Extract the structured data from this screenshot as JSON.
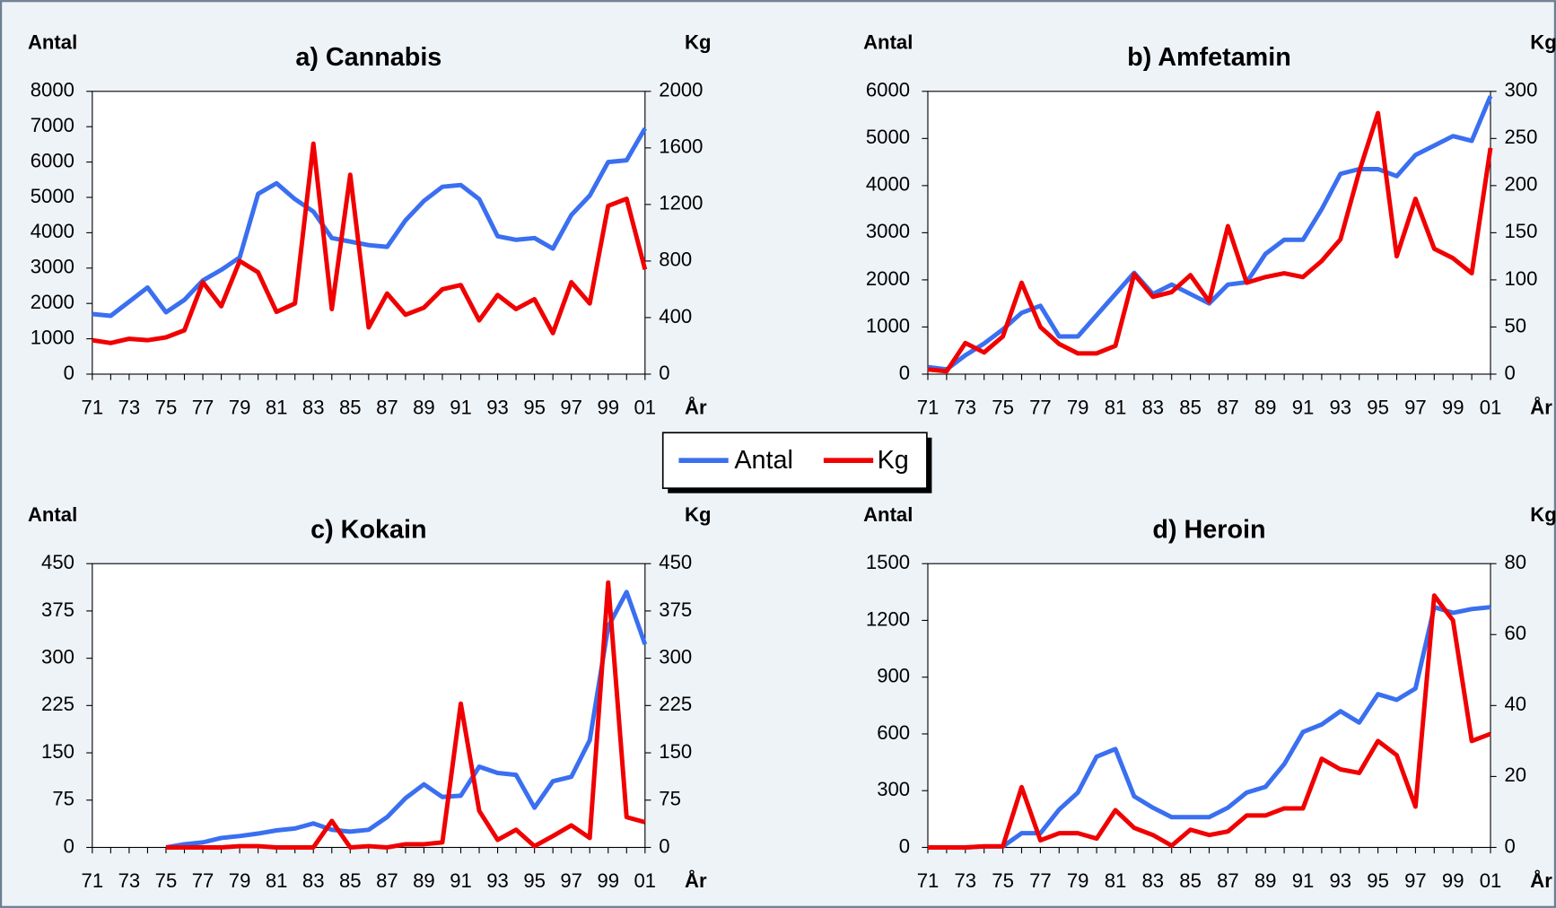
{
  "chart_data": [
    {
      "type": "line",
      "title": "a) Cannabis",
      "y_label": "Antal",
      "y2_label": "Kg",
      "x_label": "År",
      "categories": [
        "71",
        null,
        "73",
        null,
        "75",
        null,
        "77",
        null,
        "79",
        null,
        "81",
        null,
        "83",
        null,
        "85",
        null,
        "87",
        null,
        "89",
        null,
        "91",
        null,
        "93",
        null,
        "95",
        null,
        "97",
        null,
        "99",
        null,
        "01"
      ],
      "ylim": [
        0,
        8000
      ],
      "yticks": [
        0,
        1000,
        2000,
        3000,
        4000,
        5000,
        6000,
        7000,
        8000
      ],
      "y2lim": [
        0,
        2000
      ],
      "y2ticks": [
        0,
        400,
        800,
        1200,
        1600,
        2000
      ],
      "series": [
        {
          "name": "Antal",
          "color": "#3a6ff0",
          "values": [
            1700,
            1650,
            2050,
            2450,
            1750,
            2100,
            2650,
            2950,
            3300,
            5100,
            5400,
            4950,
            4600,
            3850,
            3750,
            3650,
            3600,
            4350,
            4900,
            5300,
            5350,
            4950,
            3900,
            3800,
            3850,
            3550,
            4500,
            5050,
            6000,
            6050,
            6950
          ]
        },
        {
          "name": "Kg",
          "color": "#f00000",
          "axis": "y2",
          "values": [
            240,
            220,
            250,
            240,
            260,
            310,
            650,
            480,
            800,
            720,
            440,
            500,
            1630,
            460,
            1410,
            330,
            570,
            420,
            470,
            600,
            630,
            380,
            560,
            460,
            530,
            290,
            650,
            500,
            1190,
            1240,
            740
          ]
        }
      ]
    },
    {
      "type": "line",
      "title": "b) Amfetamin",
      "y_label": "Antal",
      "y2_label": "Kg",
      "x_label": "År",
      "categories": [
        "71",
        null,
        "73",
        null,
        "75",
        null,
        "77",
        null,
        "79",
        null,
        "81",
        null,
        "83",
        null,
        "85",
        null,
        "87",
        null,
        "89",
        null,
        "91",
        null,
        "93",
        null,
        "95",
        null,
        "97",
        null,
        "99",
        null,
        "01"
      ],
      "ylim": [
        0,
        6000
      ],
      "yticks": [
        0,
        1000,
        2000,
        3000,
        4000,
        5000,
        6000
      ],
      "y2lim": [
        0,
        300
      ],
      "y2ticks": [
        0,
        50,
        100,
        150,
        200,
        250,
        300
      ],
      "series": [
        {
          "name": "Antal",
          "color": "#3a6ff0",
          "values": [
            150,
            100,
            400,
            650,
            950,
            1300,
            1450,
            800,
            800,
            1250,
            1700,
            2150,
            1700,
            1900,
            1700,
            1500,
            1900,
            1950,
            2550,
            2850,
            2850,
            3500,
            4250,
            4350,
            4350,
            4200,
            4650,
            4850,
            5050,
            4950,
            5900
          ]
        },
        {
          "name": "Kg",
          "color": "#f00000",
          "axis": "y2",
          "values": [
            5,
            3,
            33,
            23,
            40,
            97,
            50,
            32,
            22,
            22,
            30,
            106,
            82,
            87,
            105,
            77,
            157,
            97,
            103,
            107,
            103,
            120,
            143,
            215,
            277,
            125,
            186,
            133,
            123,
            107,
            240
          ]
        }
      ]
    },
    {
      "type": "line",
      "title": "c) Kokain",
      "y_label": "Antal",
      "y2_label": "Kg",
      "x_label": "År",
      "categories": [
        "71",
        null,
        "73",
        null,
        "75",
        null,
        "77",
        null,
        "79",
        null,
        "81",
        null,
        "83",
        null,
        "85",
        null,
        "87",
        null,
        "89",
        null,
        "91",
        null,
        "93",
        null,
        "95",
        null,
        "97",
        null,
        "99",
        null,
        "01"
      ],
      "ylim": [
        0,
        450
      ],
      "yticks": [
        0,
        75,
        150,
        225,
        300,
        375,
        450
      ],
      "y2lim": [
        0,
        450
      ],
      "y2ticks": [
        0,
        75,
        150,
        225,
        300,
        375,
        450
      ],
      "series": [
        {
          "name": "Antal",
          "color": "#3a6ff0",
          "values": [
            null,
            null,
            null,
            null,
            0,
            5,
            8,
            15,
            18,
            22,
            27,
            30,
            38,
            28,
            25,
            28,
            48,
            78,
            100,
            80,
            82,
            128,
            118,
            115,
            63,
            105,
            112,
            170,
            350,
            405,
            322
          ]
        },
        {
          "name": "Kg",
          "color": "#f00000",
          "axis": "y2",
          "values": [
            null,
            null,
            null,
            null,
            0,
            0,
            0,
            0,
            2,
            2,
            0,
            0,
            0,
            42,
            0,
            2,
            0,
            5,
            5,
            8,
            228,
            58,
            12,
            28,
            2,
            18,
            35,
            15,
            420,
            48,
            40
          ]
        }
      ]
    },
    {
      "type": "line",
      "title": "d) Heroin",
      "y_label": "Antal",
      "y2_label": "Kg",
      "x_label": "År",
      "categories": [
        "71",
        null,
        "73",
        null,
        "75",
        null,
        "77",
        null,
        "79",
        null,
        "81",
        null,
        "83",
        null,
        "85",
        null,
        "87",
        null,
        "89",
        null,
        "91",
        null,
        "93",
        null,
        "95",
        null,
        "97",
        null,
        "99",
        null,
        "01"
      ],
      "ylim": [
        0,
        1500
      ],
      "yticks": [
        0,
        300,
        600,
        900,
        1200,
        1500
      ],
      "y2lim": [
        0,
        80
      ],
      "y2ticks": [
        0,
        20,
        40,
        60,
        80
      ],
      "series": [
        {
          "name": "Antal",
          "color": "#3a6ff0",
          "values": [
            0,
            0,
            0,
            5,
            5,
            75,
            75,
            200,
            290,
            480,
            520,
            270,
            210,
            160,
            160,
            160,
            210,
            290,
            320,
            440,
            610,
            650,
            720,
            660,
            810,
            780,
            840,
            1270,
            1240,
            1260,
            1270
          ]
        },
        {
          "name": "Kg",
          "color": "#f00000",
          "axis": "y2",
          "values": [
            0,
            0,
            0,
            0.3,
            0.3,
            17,
            2,
            4,
            4,
            2.5,
            10.5,
            5.5,
            3.5,
            0.5,
            5,
            3.5,
            4.5,
            9,
            9,
            11,
            11,
            25,
            22,
            21,
            30,
            26,
            11.5,
            71,
            64,
            30,
            32
          ]
        }
      ]
    }
  ]
}
